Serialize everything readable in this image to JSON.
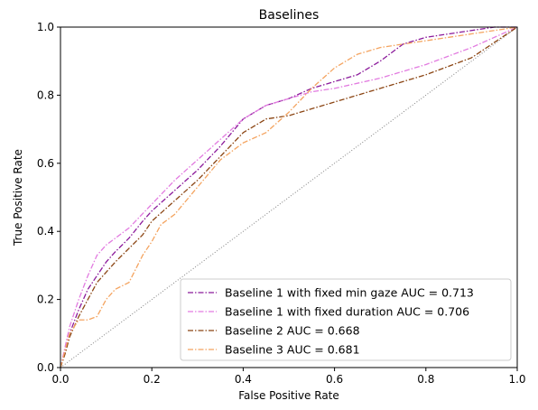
{
  "chart_data": {
    "type": "line",
    "title": "Baselines",
    "xlabel": "False Positive Rate",
    "ylabel": "True Positive Rate",
    "xlim": [
      0.0,
      1.0
    ],
    "ylim": [
      0.0,
      1.0
    ],
    "xticks": [
      "0.0",
      "0.2",
      "0.4",
      "0.6",
      "0.8",
      "1.0"
    ],
    "yticks": [
      "0.0",
      "0.2",
      "0.4",
      "0.6",
      "0.8",
      "1.0"
    ],
    "grid": false,
    "legend_position": "lower-right",
    "diagonal_reference": {
      "x": [
        0,
        1
      ],
      "y": [
        0,
        1
      ],
      "color": "#808080",
      "style": "dotted"
    },
    "series": [
      {
        "name": "Baseline 1 with fixed min gaze AUC = 0.713",
        "color": "#8b1a9b",
        "style": "dashdot",
        "x": [
          0.0,
          0.01,
          0.02,
          0.04,
          0.06,
          0.08,
          0.1,
          0.12,
          0.15,
          0.18,
          0.2,
          0.25,
          0.3,
          0.35,
          0.4,
          0.45,
          0.5,
          0.55,
          0.6,
          0.65,
          0.7,
          0.75,
          0.8,
          0.85,
          0.9,
          0.95,
          1.0
        ],
        "y": [
          0.0,
          0.05,
          0.1,
          0.17,
          0.23,
          0.27,
          0.31,
          0.34,
          0.38,
          0.43,
          0.46,
          0.52,
          0.58,
          0.65,
          0.73,
          0.77,
          0.79,
          0.82,
          0.84,
          0.86,
          0.9,
          0.95,
          0.97,
          0.98,
          0.99,
          1.0,
          1.0
        ]
      },
      {
        "name": "Baseline 1 with fixed duration AUC = 0.706",
        "color": "#e27be0",
        "style": "dashdot",
        "x": [
          0.0,
          0.01,
          0.02,
          0.04,
          0.06,
          0.08,
          0.1,
          0.12,
          0.15,
          0.2,
          0.25,
          0.3,
          0.35,
          0.4,
          0.45,
          0.5,
          0.55,
          0.6,
          0.7,
          0.8,
          0.9,
          1.0
        ],
        "y": [
          0.0,
          0.06,
          0.12,
          0.2,
          0.27,
          0.33,
          0.36,
          0.38,
          0.41,
          0.48,
          0.55,
          0.61,
          0.67,
          0.73,
          0.77,
          0.79,
          0.81,
          0.82,
          0.85,
          0.89,
          0.94,
          1.0
        ]
      },
      {
        "name": "Baseline 2 AUC = 0.668",
        "color": "#8b4513",
        "style": "dashdot",
        "x": [
          0.0,
          0.01,
          0.02,
          0.04,
          0.06,
          0.08,
          0.1,
          0.12,
          0.15,
          0.18,
          0.2,
          0.25,
          0.3,
          0.35,
          0.4,
          0.45,
          0.5,
          0.6,
          0.7,
          0.8,
          0.9,
          1.0
        ],
        "y": [
          0.0,
          0.04,
          0.09,
          0.15,
          0.2,
          0.25,
          0.28,
          0.31,
          0.35,
          0.39,
          0.43,
          0.49,
          0.55,
          0.62,
          0.69,
          0.73,
          0.74,
          0.78,
          0.82,
          0.86,
          0.91,
          1.0
        ]
      },
      {
        "name": "Baseline 3 AUC = 0.681",
        "color": "#f4a460",
        "style": "dashdot",
        "x": [
          0.0,
          0.01,
          0.02,
          0.04,
          0.06,
          0.08,
          0.1,
          0.12,
          0.15,
          0.18,
          0.2,
          0.22,
          0.25,
          0.3,
          0.35,
          0.4,
          0.45,
          0.5,
          0.55,
          0.6,
          0.65,
          0.7,
          0.75,
          0.8,
          0.85,
          0.9,
          0.95,
          1.0
        ],
        "y": [
          0.0,
          0.05,
          0.1,
          0.14,
          0.14,
          0.15,
          0.2,
          0.23,
          0.25,
          0.33,
          0.37,
          0.42,
          0.45,
          0.53,
          0.61,
          0.66,
          0.69,
          0.75,
          0.82,
          0.88,
          0.92,
          0.94,
          0.95,
          0.96,
          0.97,
          0.98,
          0.99,
          1.0
        ]
      }
    ]
  }
}
